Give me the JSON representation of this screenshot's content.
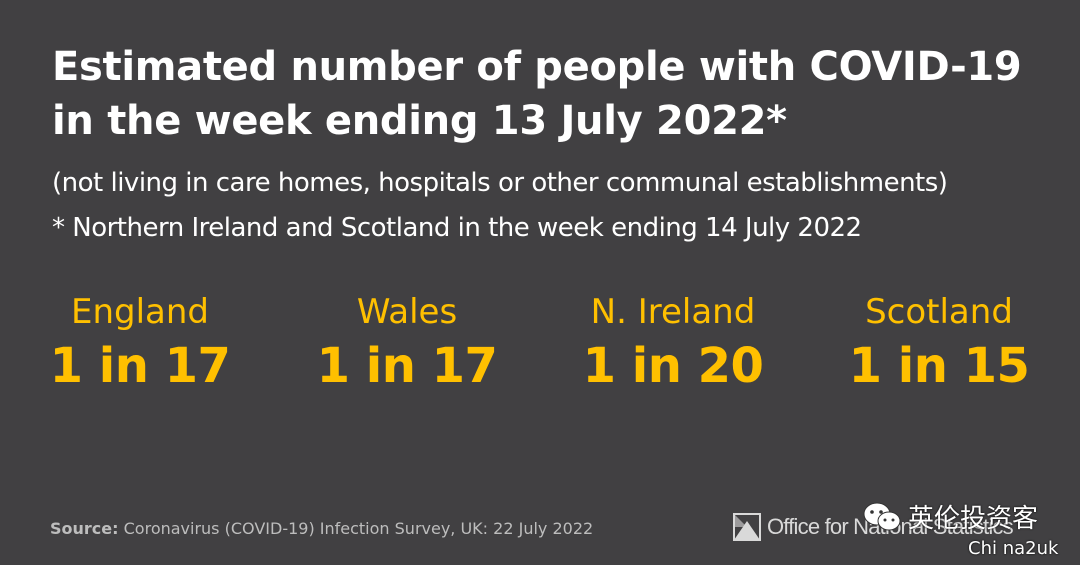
{
  "title": {
    "line1": "Estimated number of people with COVID-19",
    "line2": "in the week ending 13 July 2022*"
  },
  "subtitle": {
    "line1": "(not living in care homes, hospitals or other communal establishments)",
    "line2": "* Northern Ireland and Scotland in the week ending 14 July 2022"
  },
  "stats": [
    {
      "region": "England",
      "value": "1 in 17"
    },
    {
      "region": "Wales",
      "value": "1 in 17"
    },
    {
      "region": "N. Ireland",
      "value": "1 in 20"
    },
    {
      "region": "Scotland",
      "value": "1 in 15"
    }
  ],
  "source": {
    "label": "Source:",
    "text": "Coronavirus (COVID-19) Infection Survey, UK: 22 July 2022"
  },
  "logo": {
    "text": "Office for National Statistics",
    "icon": "ons-logo-icon"
  },
  "watermark": {
    "icon": "wechat-icon",
    "text": "英伦投资客",
    "handle": "Chi na2uk"
  },
  "colors": {
    "background": "#414042",
    "accent": "#ffc000",
    "text": "#ffffff",
    "source": "#bdbdbd"
  }
}
